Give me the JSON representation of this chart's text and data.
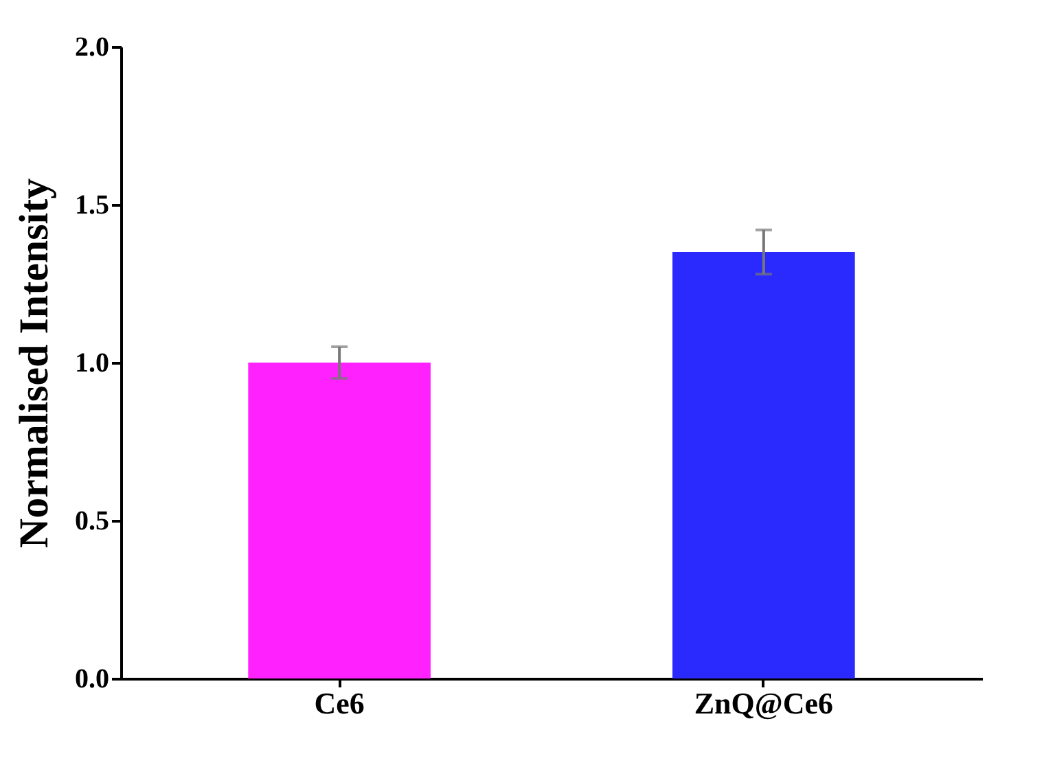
{
  "chart_data": {
    "type": "bar",
    "ylabel": "Normalised Intensity",
    "categories": [
      "Ce6",
      "ZnQ@Ce6"
    ],
    "values": [
      1.0,
      1.35
    ],
    "colors": [
      "#ff22ff",
      "#2a2aff"
    ],
    "errors": [
      0.05,
      0.07
    ],
    "ylim": [
      0,
      2
    ],
    "yticks": [
      {
        "value": 0,
        "label": "0.0"
      },
      {
        "value": 0.5,
        "label": "0.5"
      },
      {
        "value": 1,
        "label": "1.0"
      },
      {
        "value": 1.5,
        "label": "1.5"
      },
      {
        "value": 2,
        "label": "2.0"
      }
    ],
    "grid": false
  }
}
